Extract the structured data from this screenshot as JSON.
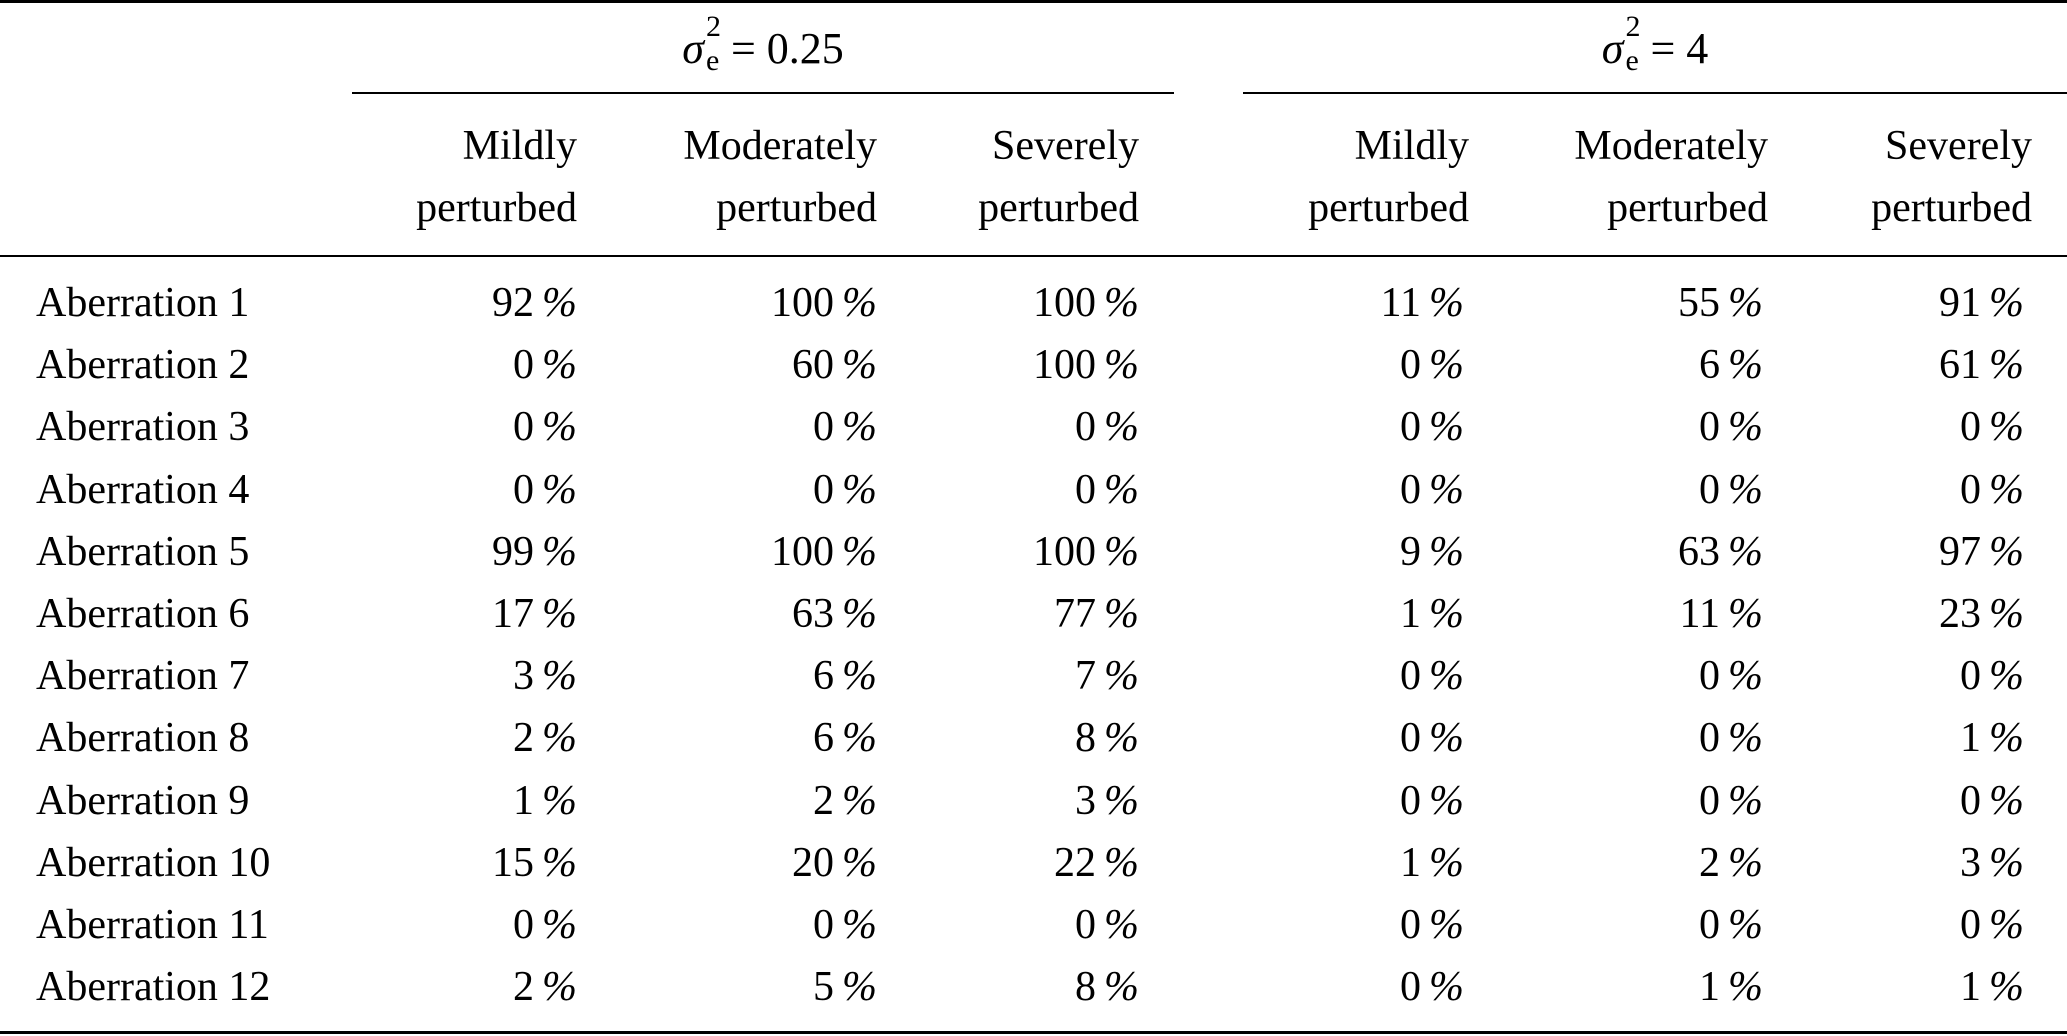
{
  "table": {
    "groups": [
      {
        "sigma": "σ",
        "sup": "2",
        "sub": "e",
        "rhs": "= 0.25"
      },
      {
        "sigma": "σ",
        "sup": "2",
        "sub": "e",
        "rhs": "= 4"
      }
    ],
    "column_headers": [
      {
        "line1": "Mildly",
        "line2": "perturbed"
      },
      {
        "line1": "Moderately",
        "line2": "perturbed"
      },
      {
        "line1": "Severely",
        "line2": "perturbed"
      },
      {
        "line1": "Mildly",
        "line2": "perturbed"
      },
      {
        "line1": "Moderately",
        "line2": "perturbed"
      },
      {
        "line1": "Severely",
        "line2": "perturbed"
      }
    ],
    "percent_sign": "%",
    "rows": [
      {
        "label": "Aberration 1",
        "values": [
          "92",
          "100",
          "100",
          "11",
          "55",
          "91"
        ]
      },
      {
        "label": "Aberration 2",
        "values": [
          "0",
          "60",
          "100",
          "0",
          "6",
          "61"
        ]
      },
      {
        "label": "Aberration 3",
        "values": [
          "0",
          "0",
          "0",
          "0",
          "0",
          "0"
        ]
      },
      {
        "label": "Aberration 4",
        "values": [
          "0",
          "0",
          "0",
          "0",
          "0",
          "0"
        ]
      },
      {
        "label": "Aberration 5",
        "values": [
          "99",
          "100",
          "100",
          "9",
          "63",
          "97"
        ]
      },
      {
        "label": "Aberration 6",
        "values": [
          "17",
          "63",
          "77",
          "1",
          "11",
          "23"
        ]
      },
      {
        "label": "Aberration 7",
        "values": [
          "3",
          "6",
          "7",
          "0",
          "0",
          "0"
        ]
      },
      {
        "label": "Aberration 8",
        "values": [
          "2",
          "6",
          "8",
          "0",
          "0",
          "1"
        ]
      },
      {
        "label": "Aberration 9",
        "values": [
          "1",
          "2",
          "3",
          "0",
          "0",
          "0"
        ]
      },
      {
        "label": "Aberration 10",
        "values": [
          "15",
          "20",
          "22",
          "1",
          "2",
          "3"
        ]
      },
      {
        "label": "Aberration 11",
        "values": [
          "0",
          "0",
          "0",
          "0",
          "0",
          "0"
        ]
      },
      {
        "label": "Aberration 12",
        "values": [
          "2",
          "5",
          "8",
          "0",
          "1",
          "1"
        ]
      }
    ]
  }
}
